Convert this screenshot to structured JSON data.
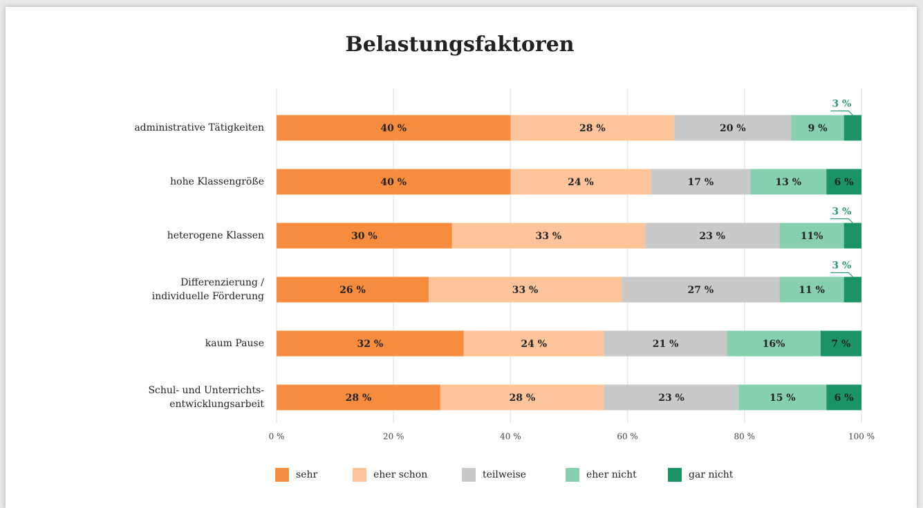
{
  "chart_data": {
    "type": "stacked-bar-horizontal",
    "title": "Belastungsfaktoren",
    "categories": [
      [
        "administrative Tätigkeiten"
      ],
      [
        "hohe Klassengröße"
      ],
      [
        "heterogene Klassen"
      ],
      [
        "Differenzierung /",
        "individuelle Förderung"
      ],
      [
        "kaum Pause"
      ],
      [
        "Schul- und Unterrichts-",
        "entwicklungsarbeit"
      ]
    ],
    "series": [
      {
        "name": "sehr",
        "color": "#f68c3e",
        "values": [
          40,
          40,
          30,
          26,
          32,
          28
        ],
        "value_labels": [
          "40 %",
          "40 %",
          "30 %",
          "26 %",
          "32 %",
          "28 %"
        ]
      },
      {
        "name": "eher schon",
        "color": "#fbc49b",
        "values": [
          28,
          24,
          33,
          33,
          24,
          28
        ],
        "value_labels": [
          "28 %",
          "24 %",
          "33 %",
          "33 %",
          "24 %",
          "28 %"
        ]
      },
      {
        "name": "teilweise",
        "color": "#c9c9c9",
        "values": [
          20,
          17,
          23,
          27,
          21,
          23
        ],
        "value_labels": [
          "20 %",
          "17 %",
          "23 %",
          "27 %",
          "21 %",
          "23 %"
        ]
      },
      {
        "name": "eher nicht",
        "color": "#86d0b0",
        "values": [
          9,
          13,
          11,
          11,
          16,
          15
        ],
        "value_labels": [
          "9 %",
          "13 %",
          "11%",
          "11 %",
          "16%",
          "15 %"
        ]
      },
      {
        "name": "gar nicht",
        "color": "#1a9466",
        "values": [
          3,
          6,
          3,
          3,
          7,
          6
        ],
        "value_labels": [
          "3 %",
          "6 %",
          "3 %",
          "3 %",
          "7 %",
          "6 %"
        ]
      }
    ],
    "xlim": [
      0,
      100
    ],
    "xticks": [
      {
        "value": 0,
        "label": "0 %"
      },
      {
        "value": 20,
        "label": "20 %"
      },
      {
        "value": 40,
        "label": "40 %"
      },
      {
        "value": 60,
        "label": "60 %"
      },
      {
        "value": 80,
        "label": "80 %"
      },
      {
        "value": 100,
        "label": "100 %"
      }
    ],
    "grid": true,
    "legend": "bottom"
  }
}
